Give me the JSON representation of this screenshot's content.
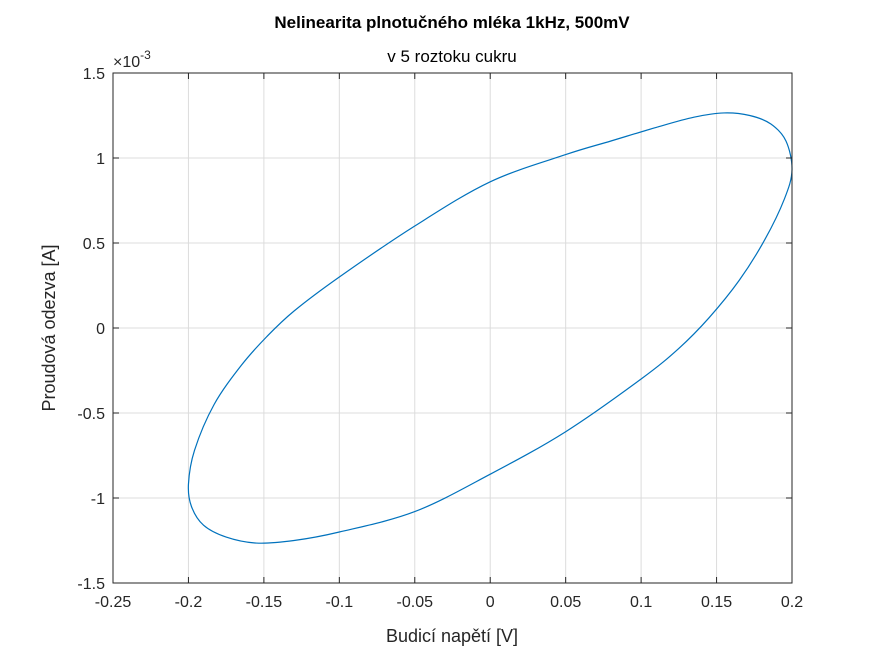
{
  "chart_data": {
    "type": "line",
    "title": "Nelinearita plnotučného mléka 1kHz, 500mV",
    "subtitle": "v 5 roztoku cukru",
    "xlabel": "Budicí napětí [V]",
    "ylabel": "Proudová odezva [A]",
    "y_exponent_label": "×10",
    "y_exponent_power": "-3",
    "xlim": [
      -0.25,
      0.2
    ],
    "ylim": [
      -1.5,
      1.5
    ],
    "xticks": [
      -0.25,
      -0.2,
      -0.15,
      -0.1,
      -0.05,
      0,
      0.05,
      0.1,
      0.15,
      0.2
    ],
    "xtick_labels": [
      "-0.25",
      "-0.2",
      "-0.15",
      "-0.1",
      "-0.05",
      "0",
      "0.05",
      "0.1",
      "0.15",
      "0.2"
    ],
    "yticks": [
      -1.5,
      -1,
      -0.5,
      0,
      0.5,
      1,
      1.5
    ],
    "ytick_labels": [
      "-1.5",
      "-1",
      "-0.5",
      "0",
      "0.5",
      "1",
      "1.5"
    ],
    "grid": true,
    "series": [
      {
        "color": "#0072bd",
        "x": [
          0.2,
          0.196,
          0.186,
          0.172,
          0.155,
          0.135,
          0.11,
          0.08,
          0.05,
          0.0,
          -0.05,
          -0.1,
          -0.13,
          -0.148,
          -0.165,
          -0.183,
          -0.196,
          -0.2,
          -0.198,
          -0.19,
          -0.175,
          -0.155,
          -0.13,
          -0.1,
          -0.05,
          0.0,
          0.05,
          0.1,
          0.125,
          0.145,
          0.165,
          0.182,
          0.195,
          0.2
        ],
        "y": [
          0.93,
          1.1,
          1.2,
          1.25,
          1.265,
          1.24,
          1.18,
          1.1,
          1.02,
          0.86,
          0.6,
          0.3,
          0.1,
          -0.05,
          -0.22,
          -0.45,
          -0.72,
          -0.92,
          -1.05,
          -1.16,
          -1.23,
          -1.265,
          -1.25,
          -1.2,
          -1.08,
          -0.86,
          -0.61,
          -0.3,
          -0.12,
          0.06,
          0.28,
          0.52,
          0.76,
          0.93
        ]
      }
    ]
  }
}
